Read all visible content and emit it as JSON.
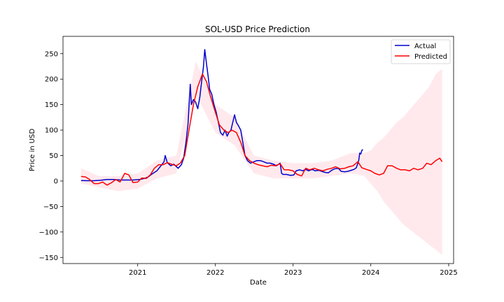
{
  "chart_data": {
    "type": "line",
    "title": "SOL-USD Price Prediction",
    "xlabel": "Date",
    "ylabel": "Price in USD",
    "xlim": [
      "2020-01-16",
      "2025-01-24"
    ],
    "ylim": [
      -162,
      284
    ],
    "x_ticks": [
      "2021-01-01",
      "2022-01-01",
      "2023-01-01",
      "2024-01-01",
      "2025-01-01"
    ],
    "x_tick_labels": [
      "2021",
      "2022",
      "2023",
      "2024",
      "2025"
    ],
    "y_ticks": [
      -150,
      -100,
      -50,
      0,
      50,
      100,
      150,
      200,
      250
    ],
    "y_tick_labels": [
      "−150",
      "−100",
      "−50",
      "0",
      "50",
      "100",
      "150",
      "200",
      "250"
    ],
    "grid": false,
    "legend_position": "top-right",
    "series": [
      {
        "name": "Actual",
        "color": "#0000cc",
        "x": [
          "2020-04-10",
          "2020-05-10",
          "2020-06-10",
          "2020-07-10",
          "2020-08-10",
          "2020-09-10",
          "2020-10-10",
          "2020-11-10",
          "2020-12-10",
          "2021-01-10",
          "2021-02-01",
          "2021-02-20",
          "2021-03-10",
          "2021-04-01",
          "2021-04-20",
          "2021-05-05",
          "2021-05-10",
          "2021-05-20",
          "2021-06-05",
          "2021-06-20",
          "2021-07-10",
          "2021-07-25",
          "2021-08-05",
          "2021-08-15",
          "2021-08-25",
          "2021-09-05",
          "2021-09-10",
          "2021-09-20",
          "2021-09-30",
          "2021-10-10",
          "2021-10-20",
          "2021-10-28",
          "2021-11-06",
          "2021-11-12",
          "2021-11-20",
          "2021-11-28",
          "2021-12-05",
          "2021-12-15",
          "2021-12-25",
          "2022-01-05",
          "2022-01-15",
          "2022-01-25",
          "2022-02-05",
          "2022-02-15",
          "2022-02-25",
          "2022-03-05",
          "2022-03-15",
          "2022-03-25",
          "2022-04-01",
          "2022-04-10",
          "2022-04-20",
          "2022-04-30",
          "2022-05-10",
          "2022-05-20",
          "2022-06-01",
          "2022-06-15",
          "2022-07-01",
          "2022-07-15",
          "2022-08-01",
          "2022-08-15",
          "2022-09-01",
          "2022-09-15",
          "2022-10-01",
          "2022-10-15",
          "2022-11-01",
          "2022-11-08",
          "2022-11-15",
          "2022-12-01",
          "2022-12-20",
          "2023-01-05",
          "2023-01-15",
          "2023-02-01",
          "2023-02-15",
          "2023-03-01",
          "2023-03-15",
          "2023-04-01",
          "2023-04-15",
          "2023-05-01",
          "2023-05-15",
          "2023-06-01",
          "2023-06-15",
          "2023-07-01",
          "2023-07-15",
          "2023-08-01",
          "2023-08-15",
          "2023-09-01",
          "2023-09-15",
          "2023-10-01",
          "2023-10-15",
          "2023-10-25",
          "2023-11-05",
          "2023-11-10",
          "2023-11-15",
          "2023-11-20",
          "2023-11-25"
        ],
        "values": [
          0.9,
          0.6,
          0.6,
          1.5,
          3,
          3,
          2,
          2,
          2,
          3,
          5,
          8,
          14,
          20,
          30,
          38,
          50,
          36,
          30,
          33,
          25,
          32,
          45,
          75,
          110,
          190,
          150,
          160,
          155,
          142,
          165,
          195,
          225,
          258,
          230,
          205,
          180,
          170,
          150,
          135,
          115,
          95,
          90,
          100,
          88,
          95,
          100,
          118,
          130,
          115,
          108,
          100,
          75,
          50,
          40,
          35,
          38,
          40,
          40,
          38,
          35,
          35,
          33,
          30,
          35,
          15,
          13,
          13,
          11,
          12,
          20,
          22,
          20,
          23,
          20,
          23,
          20,
          21,
          19,
          17,
          16,
          21,
          24,
          25,
          19,
          18,
          19,
          21,
          23,
          26,
          40,
          55,
          53,
          60,
          62
        ]
      },
      {
        "name": "Predicted",
        "color": "#ff0000",
        "x": [
          "2020-04-10",
          "2020-05-01",
          "2020-05-20",
          "2020-06-10",
          "2020-07-01",
          "2020-07-20",
          "2020-08-10",
          "2020-09-01",
          "2020-09-20",
          "2020-10-10",
          "2020-11-01",
          "2020-11-20",
          "2020-12-10",
          "2021-01-01",
          "2021-01-20",
          "2021-02-10",
          "2021-03-01",
          "2021-03-20",
          "2021-04-10",
          "2021-05-01",
          "2021-05-20",
          "2021-06-10",
          "2021-07-01",
          "2021-07-20",
          "2021-08-10",
          "2021-09-01",
          "2021-09-20",
          "2021-10-10",
          "2021-11-01",
          "2021-11-20",
          "2021-12-10",
          "2022-01-01",
          "2022-01-20",
          "2022-02-10",
          "2022-03-01",
          "2022-03-20",
          "2022-04-10",
          "2022-05-01",
          "2022-05-20",
          "2022-06-10",
          "2022-07-01",
          "2022-07-20",
          "2022-08-10",
          "2022-09-01",
          "2022-09-20",
          "2022-10-10",
          "2022-11-01",
          "2022-11-20",
          "2022-12-10",
          "2023-01-01",
          "2023-01-20",
          "2023-02-10",
          "2023-03-01",
          "2023-03-20",
          "2023-04-10",
          "2023-05-01",
          "2023-05-20",
          "2023-06-10",
          "2023-07-01",
          "2023-07-20",
          "2023-08-10",
          "2023-09-01",
          "2023-09-20",
          "2023-10-10",
          "2023-11-01",
          "2023-11-20",
          "2023-12-10",
          "2024-01-01",
          "2024-01-20",
          "2024-02-10",
          "2024-03-01",
          "2024-03-20",
          "2024-04-10",
          "2024-05-01",
          "2024-05-20",
          "2024-06-10",
          "2024-07-01",
          "2024-07-20",
          "2024-08-10",
          "2024-09-01",
          "2024-09-20",
          "2024-10-10",
          "2024-11-01",
          "2024-11-20",
          "2024-12-01"
        ],
        "values": [
          9,
          8,
          3,
          -5,
          -5,
          -2,
          -8,
          -3,
          3,
          -2,
          15,
          12,
          -3,
          -2,
          6,
          5,
          12,
          25,
          32,
          32,
          36,
          33,
          30,
          35,
          50,
          105,
          150,
          185,
          210,
          195,
          165,
          135,
          110,
          100,
          95,
          100,
          95,
          75,
          50,
          40,
          35,
          32,
          30,
          28,
          31,
          30,
          34,
          22,
          22,
          20,
          13,
          10,
          25,
          22,
          25,
          22,
          20,
          23,
          25,
          28,
          24,
          25,
          28,
          30,
          38,
          26,
          23,
          20,
          15,
          12,
          15,
          30,
          30,
          25,
          22,
          22,
          20,
          25,
          22,
          25,
          35,
          32,
          40,
          45,
          38
        ]
      },
      {
        "name": "",
        "type": "band",
        "color": "#ffe4e8",
        "x": [
          "2020-04-10",
          "2020-07-01",
          "2020-10-01",
          "2021-01-01",
          "2021-04-01",
          "2021-07-01",
          "2021-10-01",
          "2022-01-01",
          "2022-04-01",
          "2022-07-01",
          "2022-10-01",
          "2023-01-01",
          "2023-04-01",
          "2023-07-01",
          "2023-10-01",
          "2023-12-01",
          "2024-01-01",
          "2024-02-01",
          "2024-03-01",
          "2024-04-01",
          "2024-05-01",
          "2024-06-01",
          "2024-07-01",
          "2024-08-01",
          "2024-09-01",
          "2024-10-01",
          "2024-11-01",
          "2024-12-01"
        ],
        "lower": [
          -5,
          -12,
          -20,
          -15,
          5,
          15,
          170,
          95,
          70,
          15,
          5,
          5,
          5,
          10,
          15,
          10,
          -5,
          -20,
          -40,
          -55,
          -70,
          -85,
          -95,
          -105,
          -115,
          -125,
          -135,
          -145
        ],
        "upper": [
          25,
          10,
          10,
          15,
          40,
          50,
          235,
          150,
          125,
          50,
          40,
          35,
          35,
          40,
          55,
          55,
          60,
          75,
          85,
          100,
          115,
          125,
          140,
          155,
          170,
          185,
          210,
          220
        ]
      }
    ]
  }
}
